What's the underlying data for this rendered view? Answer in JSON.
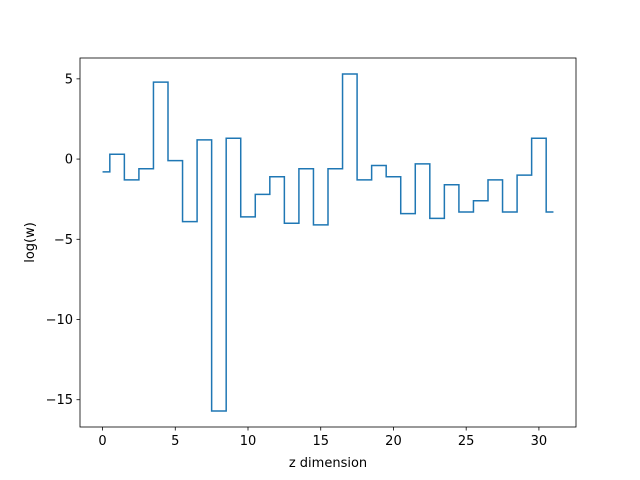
{
  "chart_data": {
    "type": "line",
    "drawstyle": "steps-mid",
    "title": "",
    "xlabel": "z dimension",
    "ylabel": "log(w)",
    "xlim": [
      -1.55,
      32.55
    ],
    "ylim": [
      -16.7,
      6.3
    ],
    "xticks": [
      0,
      5,
      10,
      15,
      20,
      25,
      30
    ],
    "xtick_labels": [
      "0",
      "5",
      "10",
      "15",
      "20",
      "25",
      "30"
    ],
    "yticks": [
      5,
      0,
      -5,
      -10,
      -15
    ],
    "ytick_labels": [
      "5",
      "0",
      "−5",
      "−10",
      "−15"
    ],
    "grid": false,
    "legend": false,
    "series": [
      {
        "color": "#1f77b4",
        "x": [
          0,
          1,
          2,
          3,
          4,
          5,
          6,
          7,
          8,
          9,
          10,
          11,
          12,
          13,
          14,
          15,
          16,
          17,
          18,
          19,
          20,
          21,
          22,
          23,
          24,
          25,
          26,
          27,
          28,
          29,
          30,
          31
        ],
        "y": [
          -0.8,
          0.3,
          -1.3,
          -0.6,
          4.8,
          -0.1,
          -3.9,
          1.2,
          -15.7,
          1.3,
          -3.6,
          -2.2,
          -1.1,
          -4.0,
          -0.6,
          -4.1,
          -0.6,
          5.3,
          -1.3,
          -0.4,
          -1.1,
          -3.4,
          -0.3,
          -3.7,
          -1.6,
          -3.3,
          -2.6,
          -1.3,
          -3.3,
          -1.0,
          1.3,
          -3.3
        ]
      }
    ]
  }
}
